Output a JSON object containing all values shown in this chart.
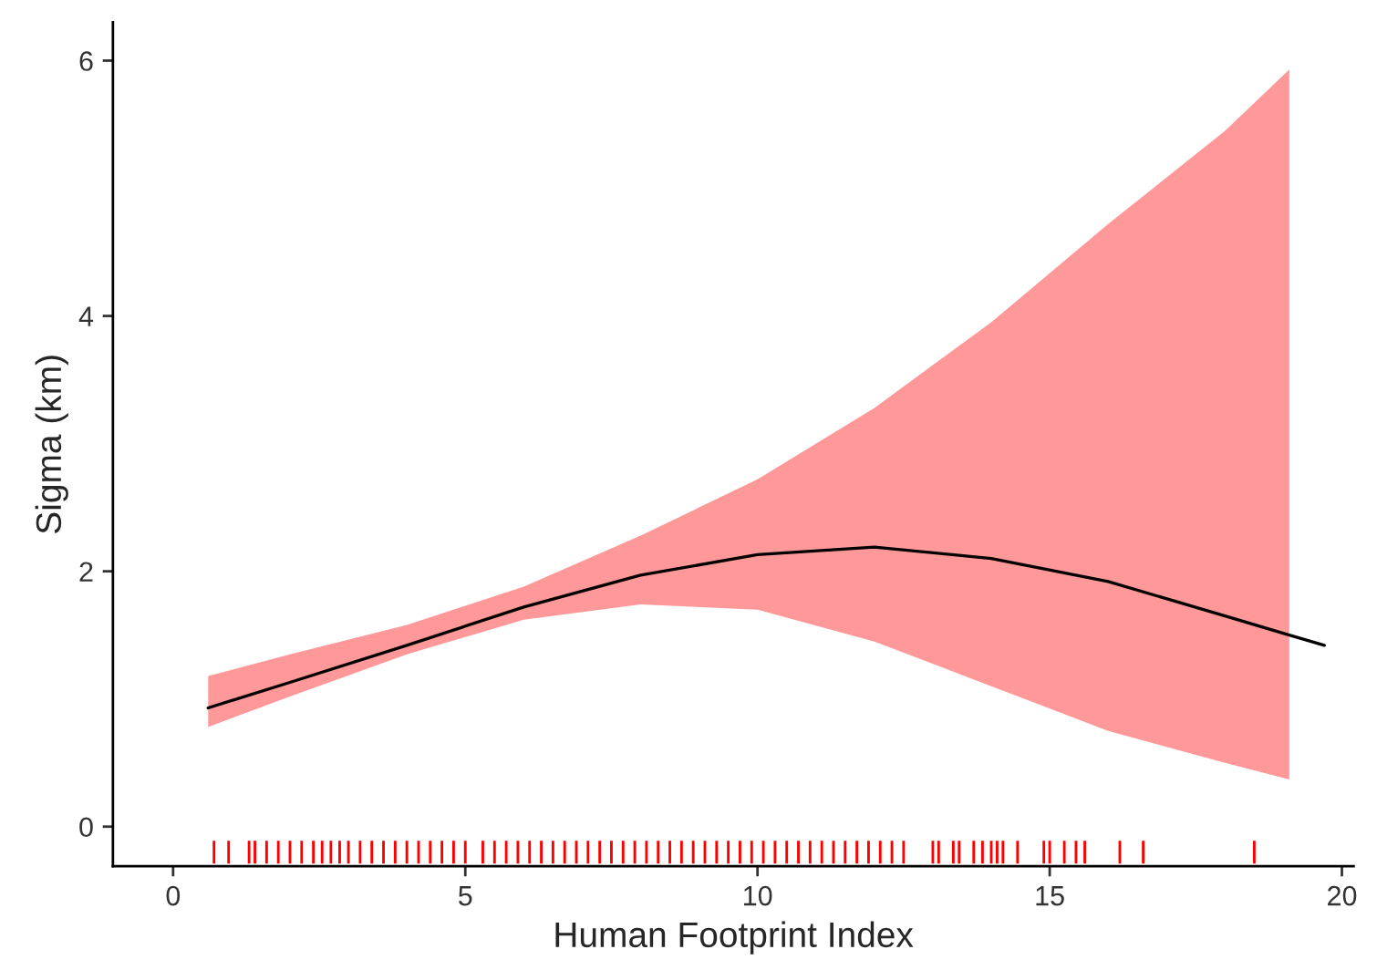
{
  "chart_data": {
    "type": "line",
    "xlabel": "Human Footprint Index",
    "ylabel": "Sigma (km)",
    "xlim": [
      -1.03,
      20.2
    ],
    "ylim": [
      -0.31,
      6.3
    ],
    "xticks": [
      0,
      5,
      10,
      15,
      20
    ],
    "yticks": [
      0,
      2,
      4,
      6
    ],
    "grid": false,
    "legend": false,
    "series": [
      {
        "type": "line",
        "color": "#000000",
        "x": [
          0.6,
          2,
          4,
          6,
          8,
          10,
          12,
          14,
          16,
          18,
          19.1,
          19.7
        ],
        "values": [
          0.93,
          1.13,
          1.42,
          1.72,
          1.97,
          2.13,
          2.19,
          2.1,
          1.92,
          1.65,
          1.5,
          1.42
        ],
        "upper": [
          1.18,
          1.35,
          1.58,
          1.88,
          2.28,
          2.72,
          3.28,
          3.95,
          4.72,
          5.45,
          5.93,
          null
        ],
        "lower": [
          0.78,
          1.02,
          1.35,
          1.62,
          1.74,
          1.7,
          1.45,
          1.1,
          0.75,
          0.5,
          0.37,
          null
        ]
      },
      {
        "type": "bar",
        "color": "#ff0000",
        "base": [
          -0.29,
          -0.29,
          -0.29,
          -0.29,
          -0.29,
          -0.29,
          -0.29,
          -0.29,
          -0.29,
          -0.29,
          -0.29,
          -0.29,
          -0.29,
          -0.29,
          -0.29,
          -0.29,
          -0.29,
          -0.29,
          -0.29,
          -0.29,
          -0.29,
          -0.29,
          -0.29,
          -0.29,
          -0.29,
          -0.29,
          -0.29,
          -0.29,
          -0.29,
          -0.29,
          -0.29,
          -0.29,
          -0.29,
          -0.29,
          -0.29,
          -0.29,
          -0.29,
          -0.29,
          -0.29,
          -0.29,
          -0.29,
          -0.29,
          -0.29,
          -0.29,
          -0.29,
          -0.29,
          -0.29,
          -0.29,
          -0.29,
          -0.29,
          -0.29,
          -0.29,
          -0.29,
          -0.29,
          -0.29,
          -0.29,
          -0.29,
          -0.29,
          -0.29,
          -0.29,
          -0.29,
          -0.29,
          -0.29,
          -0.29,
          -0.29,
          -0.29,
          -0.29,
          -0.29,
          -0.29,
          -0.29,
          -0.29,
          -0.29,
          -0.29,
          -0.29,
          -0.29,
          -0.29,
          -0.29,
          -0.29
        ],
        "x": [
          0.7,
          0.95,
          1.3,
          1.4,
          1.6,
          1.8,
          2.0,
          2.2,
          2.4,
          2.55,
          2.7,
          2.85,
          3.0,
          3.2,
          3.4,
          3.6,
          3.8,
          4.0,
          4.2,
          4.4,
          4.6,
          4.8,
          5.0,
          5.3,
          5.5,
          5.7,
          5.9,
          6.1,
          6.3,
          6.5,
          6.7,
          6.9,
          7.1,
          7.3,
          7.5,
          7.7,
          7.9,
          8.1,
          8.3,
          8.5,
          8.7,
          8.9,
          9.1,
          9.3,
          9.5,
          9.7,
          9.9,
          10.1,
          10.3,
          10.5,
          10.7,
          10.9,
          11.1,
          11.3,
          11.5,
          11.7,
          11.9,
          12.1,
          12.3,
          12.5,
          13.0,
          13.1,
          13.35,
          13.45,
          13.7,
          13.85,
          14.0,
          14.1,
          14.2,
          14.45,
          14.9,
          15.0,
          15.25,
          15.45,
          15.6,
          16.2,
          16.6,
          18.5
        ],
        "values": [
          0.18,
          0.18,
          0.18,
          0.18,
          0.18,
          0.18,
          0.18,
          0.18,
          0.18,
          0.18,
          0.18,
          0.18,
          0.18,
          0.18,
          0.18,
          0.18,
          0.18,
          0.18,
          0.18,
          0.18,
          0.18,
          0.18,
          0.18,
          0.18,
          0.18,
          0.18,
          0.18,
          0.18,
          0.18,
          0.18,
          0.18,
          0.18,
          0.18,
          0.18,
          0.18,
          0.18,
          0.18,
          0.18,
          0.18,
          0.18,
          0.18,
          0.18,
          0.18,
          0.18,
          0.18,
          0.18,
          0.18,
          0.18,
          0.18,
          0.18,
          0.18,
          0.18,
          0.18,
          0.18,
          0.18,
          0.18,
          0.18,
          0.18,
          0.18,
          0.18,
          0.18,
          0.18,
          0.18,
          0.18,
          0.18,
          0.18,
          0.18,
          0.18,
          0.18,
          0.18,
          0.18,
          0.18,
          0.18,
          0.18,
          0.18,
          0.18,
          0.18,
          0.18
        ]
      }
    ]
  }
}
